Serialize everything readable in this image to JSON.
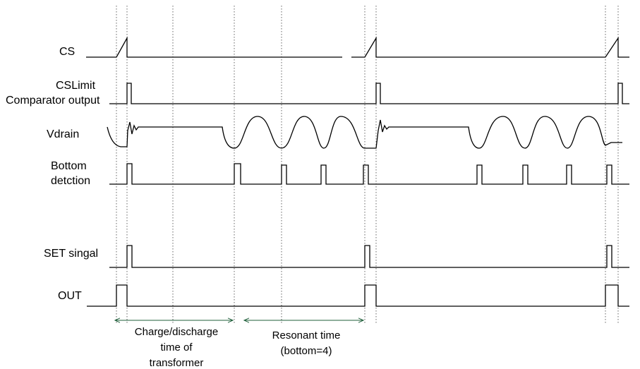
{
  "signals": {
    "cs": "CS",
    "cslimit_line1": "CSLimit",
    "cslimit_line2": "Comparator output",
    "vdrain": "Vdrain",
    "bottom_line1": "Bottom",
    "bottom_line2": "detction",
    "set": "SET singal",
    "out": "OUT"
  },
  "annotations": {
    "charge_line1": "Charge/discharge",
    "charge_line2": "time of",
    "charge_line3": "transformer",
    "resonant_line1": "Resonant time",
    "resonant_line2": "(bottom=4)"
  },
  "colors": {
    "line": "#000000",
    "guide": "#555555",
    "arrow": "#1f5f3a"
  }
}
